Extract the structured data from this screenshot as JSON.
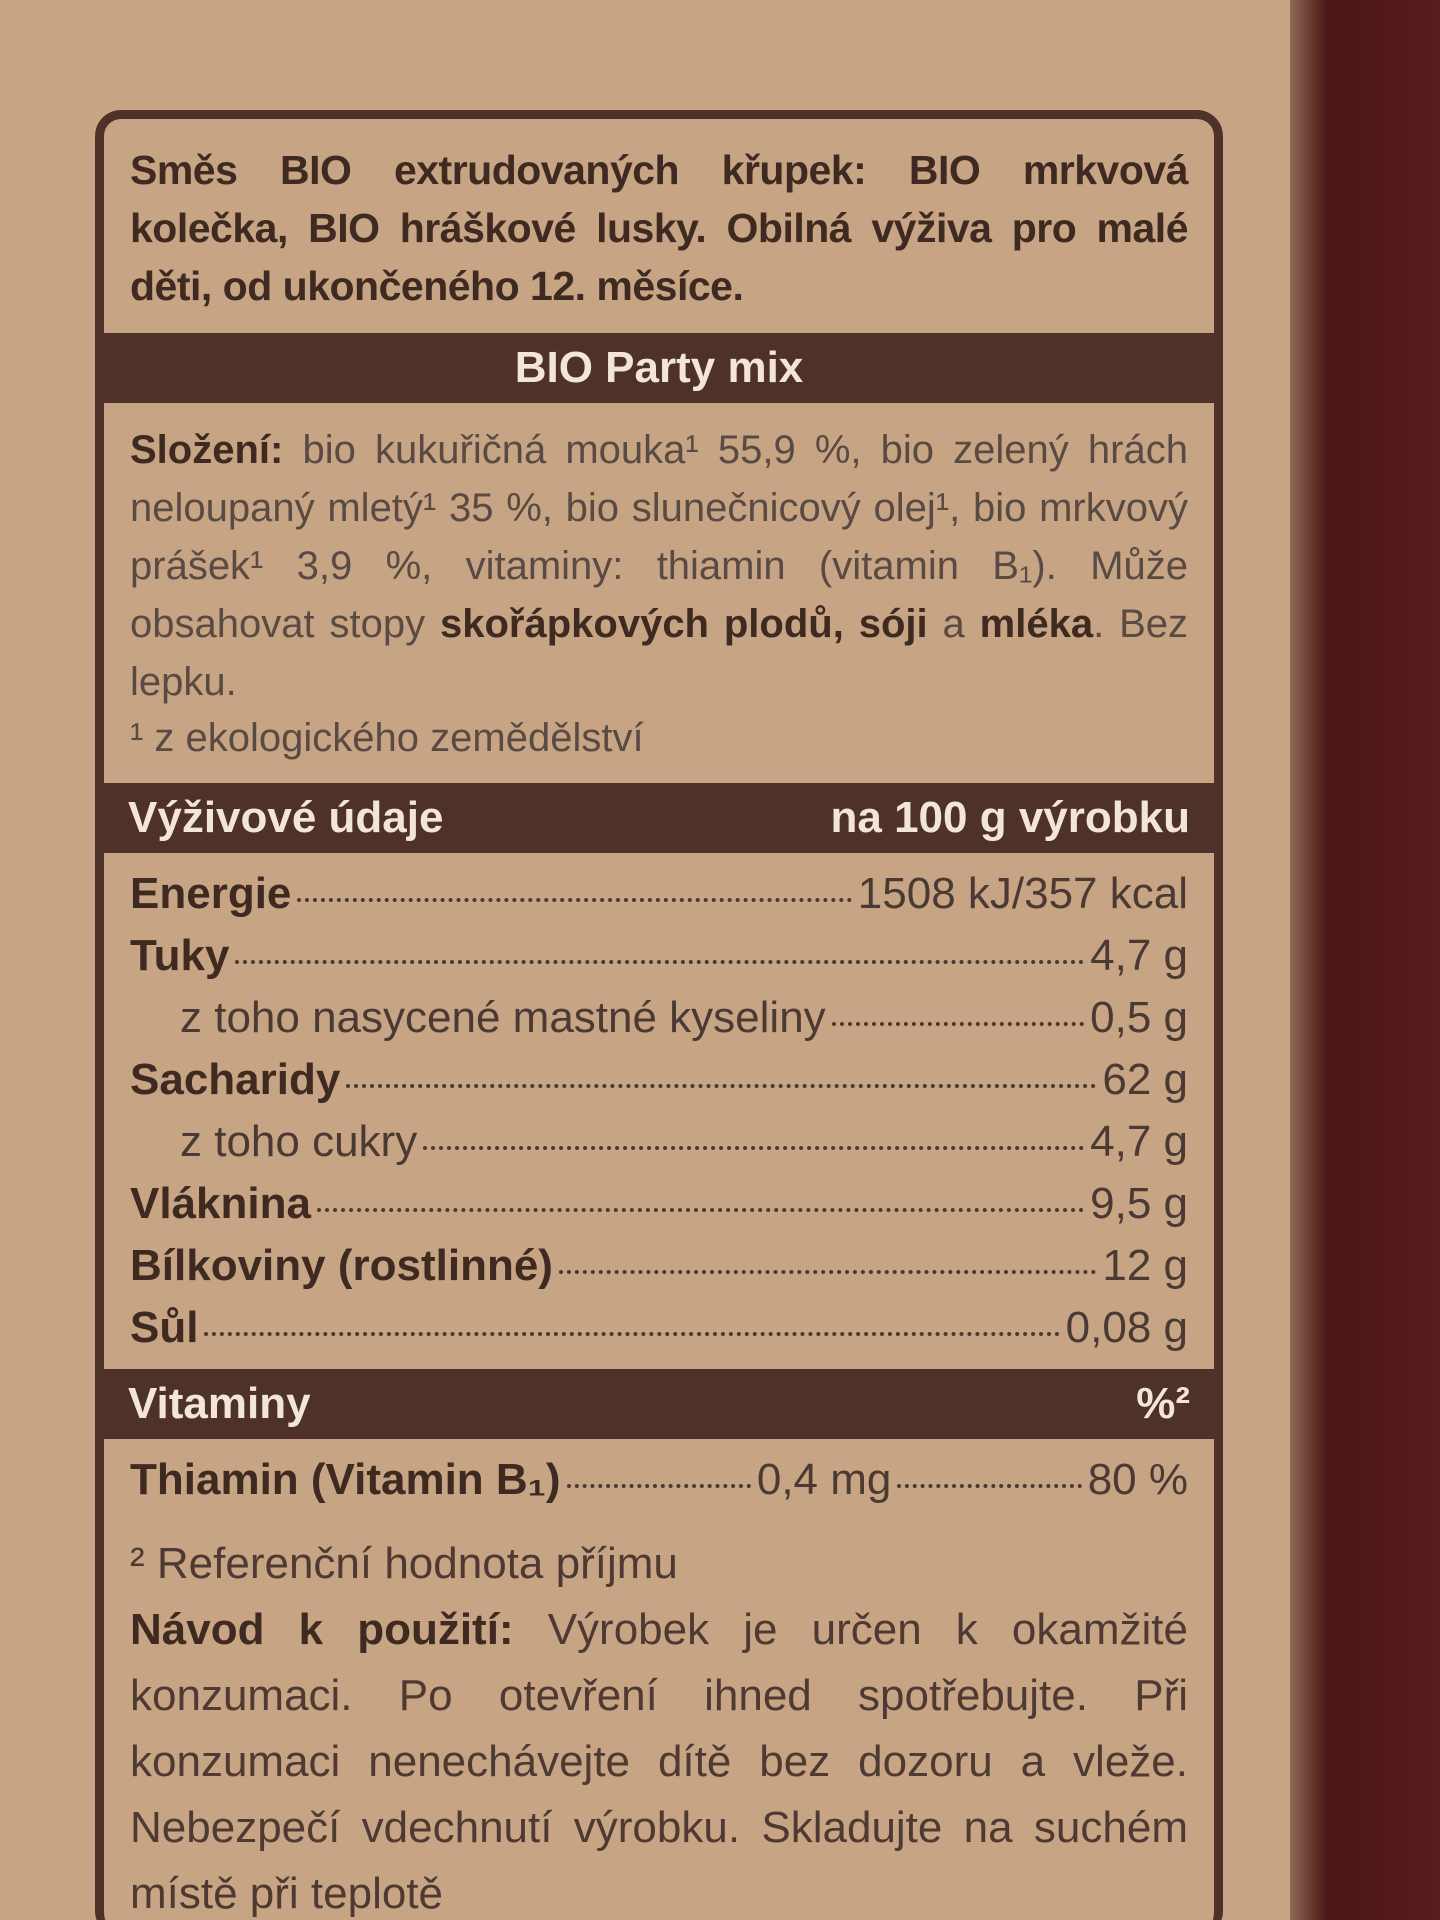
{
  "intro": "Směs BIO extrudovaných křupek: BIO mrkvová kolečka, BIO hráškové lusky. Obilná výživa pro malé děti, od ukončeného 12. měsíce.",
  "product_name": "BIO Party mix",
  "ingredients": {
    "label": "Složení:",
    "text": "bio kukuřičná mouka¹ 55,9 %, bio zelený hrách neloupaný mletý¹ 35 %, bio slunečnicový olej¹, bio mrkvový prášek¹ 3,9 %, vitaminy: thiamin (vitamin B₁).",
    "allergens": [
      {
        "text": "Může obsahovat stopy",
        "bold": false
      },
      {
        "text": "skořápkových plodů, sóji",
        "bold": true
      },
      {
        "text": "a",
        "bold": false
      },
      {
        "text": "mléka",
        "bold": true
      },
      {
        "text": ". Bez lepku.",
        "bold": false
      }
    ],
    "footnote": "¹ z ekologického zemědělství"
  },
  "nutrition": {
    "title": "Výživové údaje",
    "per": "na 100 g výrobku",
    "rows": [
      {
        "name": "Energie",
        "value": "1508 kJ/357 kcal",
        "bold": true
      },
      {
        "name": "Tuky",
        "value": "4,7 g",
        "bold": true
      },
      {
        "name": "z toho nasycené mastné kyseliny",
        "value": "0,5 g",
        "bold": false
      },
      {
        "name": "Sacharidy",
        "value": "62 g",
        "bold": true
      },
      {
        "name": "z toho cukry",
        "value": "4,7 g",
        "bold": false
      },
      {
        "name": "Vláknina",
        "value": "9,5 g",
        "bold": true
      },
      {
        "name": "Bílkoviny (rostlinné)",
        "value": "12 g",
        "bold": true
      },
      {
        "name": "Sůl",
        "value": "0,08 g",
        "bold": true
      }
    ]
  },
  "vitamins": {
    "title": "Vitaminy",
    "pct_header": "%²",
    "rows": [
      {
        "name": "Thiamin (Vitamin B₁)",
        "amount": "0,4 mg",
        "pct": "80 %"
      }
    ],
    "footnote": "² Referenční hodnota příjmu"
  },
  "usage": {
    "label": "Návod k použití:",
    "text": "Výrobek je určen k okamžité konzumaci. Po otevření ihned spotřebujte. Při konzumaci nenechávejte dítě bez dozoru a vleže. Nebezpečí vdechnutí výrobku.",
    "storage": "Skladujte na suchém místě při teplotě"
  }
}
